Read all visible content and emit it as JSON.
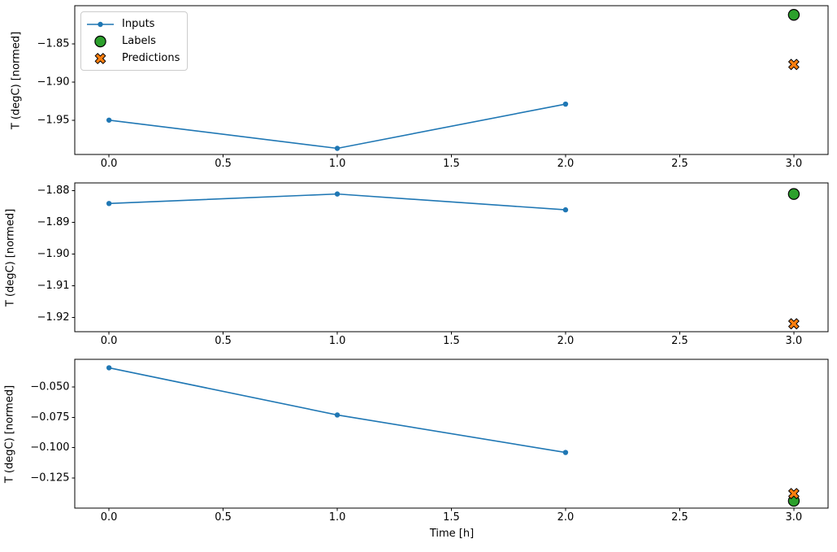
{
  "figure": {
    "background_color": "#ffffff",
    "xlabel": "Time [h]"
  },
  "axis": {
    "xlim": [
      -0.15,
      3.15
    ],
    "xticks": [
      0,
      0.5,
      1,
      1.5,
      2,
      2.5,
      3
    ],
    "xtick_labels": [
      "0.0",
      "0.5",
      "1.0",
      "1.5",
      "2.0",
      "2.5",
      "3.0"
    ]
  },
  "legend": {
    "location": "upper left",
    "border_color": "#cccccc",
    "marker_edge_color": "#000000",
    "items": [
      {
        "label": "Inputs",
        "marker": "line-dot",
        "color": "#1f77b4"
      },
      {
        "label": "Labels",
        "marker": "circle",
        "color": "#2ca02c"
      },
      {
        "label": "Predictions",
        "marker": "x",
        "color": "#ff7f0e"
      }
    ]
  },
  "chart_data": [
    {
      "type": "line",
      "title": "",
      "xlabel": "",
      "ylabel": "T (degC) [normed]",
      "grid": false,
      "xlim": [
        -0.15,
        3.15
      ],
      "ylim": [
        -1.995,
        -1.8
      ],
      "yticks": [
        -1.85,
        -1.9,
        -1.95
      ],
      "ytick_labels": [
        "−1.85",
        "−1.90",
        "−1.95"
      ],
      "series": [
        {
          "name": "Inputs",
          "kind": "line-dot",
          "color": "#1f77b4",
          "x": [
            0,
            1,
            2
          ],
          "y": [
            -1.95,
            -1.987,
            -1.929
          ]
        },
        {
          "name": "Labels",
          "kind": "circle",
          "color": "#2ca02c",
          "x": [
            3
          ],
          "y": [
            -1.812
          ]
        },
        {
          "name": "Predictions",
          "kind": "x",
          "color": "#ff7f0e",
          "x": [
            3
          ],
          "y": [
            -1.877
          ]
        }
      ]
    },
    {
      "type": "line",
      "title": "",
      "xlabel": "",
      "ylabel": "T (degC) [normed]",
      "grid": false,
      "xlim": [
        -0.15,
        3.15
      ],
      "ylim": [
        -1.9245,
        -1.8775
      ],
      "yticks": [
        -1.88,
        -1.89,
        -1.9,
        -1.91,
        -1.92
      ],
      "ytick_labels": [
        "−1.88",
        "−1.89",
        "−1.90",
        "−1.91",
        "−1.92"
      ],
      "series": [
        {
          "name": "Inputs",
          "kind": "line-dot",
          "color": "#1f77b4",
          "x": [
            0,
            1,
            2
          ],
          "y": [
            -1.884,
            -1.881,
            -1.886
          ]
        },
        {
          "name": "Labels",
          "kind": "circle",
          "color": "#2ca02c",
          "x": [
            3
          ],
          "y": [
            -1.881
          ]
        },
        {
          "name": "Predictions",
          "kind": "x",
          "color": "#ff7f0e",
          "x": [
            3
          ],
          "y": [
            -1.922
          ]
        }
      ]
    },
    {
      "type": "line",
      "title": "",
      "xlabel": "Time [h]",
      "ylabel": "T (degC) [normed]",
      "grid": false,
      "xlim": [
        -0.15,
        3.15
      ],
      "ylim": [
        -0.15,
        -0.027
      ],
      "yticks": [
        -0.05,
        -0.075,
        -0.1,
        -0.125
      ],
      "ytick_labels": [
        "−0.050",
        "−0.075",
        "−0.100",
        "−0.125"
      ],
      "series": [
        {
          "name": "Inputs",
          "kind": "line-dot",
          "color": "#1f77b4",
          "x": [
            0,
            1,
            2
          ],
          "y": [
            -0.034,
            -0.073,
            -0.104
          ]
        },
        {
          "name": "Labels",
          "kind": "circle",
          "color": "#2ca02c",
          "x": [
            3
          ],
          "y": [
            -0.144
          ]
        },
        {
          "name": "Predictions",
          "kind": "x",
          "color": "#ff7f0e",
          "x": [
            3
          ],
          "y": [
            -0.138
          ]
        }
      ]
    }
  ]
}
